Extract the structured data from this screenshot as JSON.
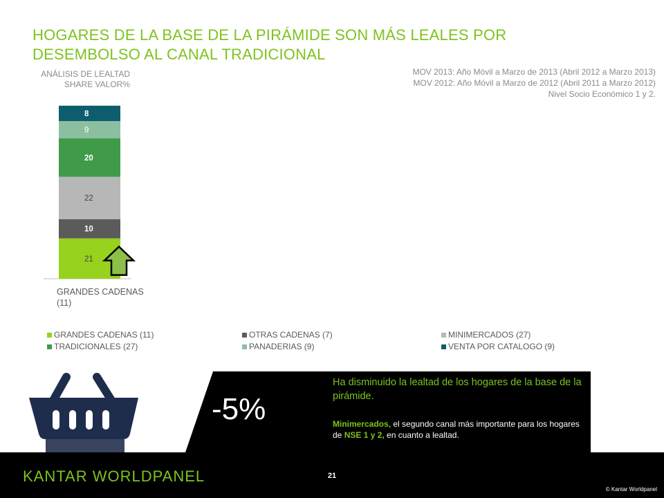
{
  "title": "HOGARES DE LA BASE DE LA PIRÁMIDE SON MÁS LEALES POR DESEMBOLSO AL CANAL TRADICIONAL",
  "subtitle": {
    "line1": "ANÁLISIS DE LEALTAD",
    "line2": "SHARE VALOR%"
  },
  "notes": [
    "MOV 2013: Año Móvil a Marzo de 2013 (Abril 2012 a Marzo 2013)",
    "MOV 2012: Año Móvil a Marzo de 2012 (Abril 2011 a Marzo 2012)",
    "Nivel Socio Económico 1 y 2."
  ],
  "chart_data": {
    "type": "bar",
    "stacked": true,
    "categories": [
      "GRANDES CADENAS (11)"
    ],
    "series": [
      {
        "name": "GRANDES CADENAS (11)",
        "values": [
          21
        ],
        "color": "#96d21e",
        "label_color": "#444444",
        "label_bold": false
      },
      {
        "name": "OTRAS CADENAS (7)",
        "values": [
          10
        ],
        "color": "#5b5b5b",
        "label_color": "#ffffff",
        "label_bold": true
      },
      {
        "name": "MINIMERCADOS (27)",
        "values": [
          22
        ],
        "color": "#b7b7b7",
        "label_color": "#444444",
        "label_bold": false
      },
      {
        "name": "TRADICIONALES (27)",
        "values": [
          20
        ],
        "color": "#3f9b49",
        "label_color": "#ffffff",
        "label_bold": true
      },
      {
        "name": "PANADERIAS (9)",
        "values": [
          9
        ],
        "color": "#8cbfa0",
        "label_color": "#ffffff",
        "label_bold": false
      },
      {
        "name": "VENTA POR CATALOGO (9)",
        "values": [
          8
        ],
        "color": "#0e5d6e",
        "label_color": "#ffffff",
        "label_bold": true
      }
    ],
    "indicator": {
      "category": "GRANDES CADENAS (11)",
      "series": "GRANDES CADENAS (11)",
      "direction": "up",
      "color": "#8cc04a"
    },
    "legend_position": "bottom"
  },
  "callout": {
    "value": "-5%",
    "headline": "Ha disminuido la lealtad de los hogares de la base de la pirámide.",
    "detail_bold_1": "Minimercados,",
    "detail_text_1": " el segundo canal más importante para los hogares de ",
    "detail_bold_2": "NSE 1 y 2,",
    "detail_text_2": " en cuanto a lealtad."
  },
  "footer": {
    "logo": "KANTAR WORLDPANEL",
    "page": "21",
    "copyright": "© Kantar Worldpanel"
  },
  "icons": {
    "basket": "shopping-basket-icon",
    "arrow": "arrow-up-icon"
  }
}
